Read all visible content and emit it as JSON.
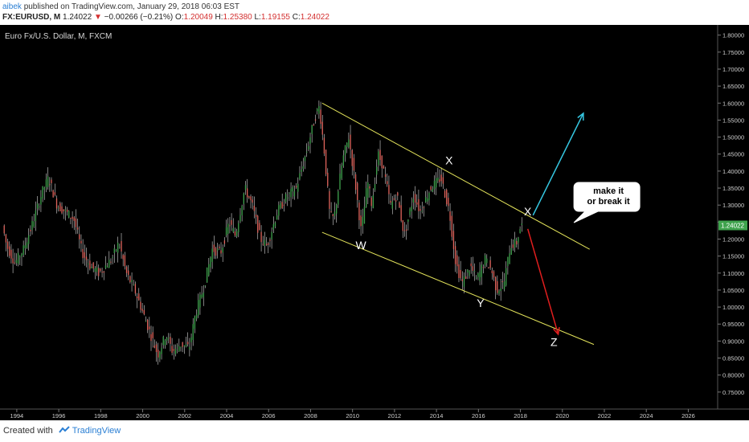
{
  "header": {
    "author": "aibek",
    "published_text": "published on TradingView.com, January 29, 2018 06:03 EST",
    "symbol": "FX:EURUSD, M",
    "last": "1.24022",
    "change_arrow": "▼",
    "change": "−0.00266 (−0.21%)",
    "o_label": "O:",
    "o_value": "1.20049",
    "h_label": "H:",
    "h_value": "1.25380",
    "l_label": "L:",
    "l_value": "1.19155",
    "c_label": "C:",
    "c_value": "1.24022"
  },
  "footer": {
    "created_with": "Created with",
    "brand": "TradingView"
  },
  "colors": {
    "background": "#000000",
    "up": "#3fa34d",
    "down": "#e0645c",
    "channel": "#e3e35a",
    "arrow_up": "#35c6e0",
    "arrow_down": "#e01e1e",
    "price_badge": "#3fa34d"
  },
  "chart_data": {
    "type": "candlestick",
    "title": "Euro Fx/U.S. Dollar, M, FXCM",
    "xlim": [
      1993.2,
      2027.4
    ],
    "ylim": [
      0.7,
      1.83
    ],
    "x_ticks": [
      "1994",
      "1996",
      "1998",
      "2000",
      "2002",
      "2004",
      "2006",
      "2008",
      "2010",
      "2012",
      "2014",
      "2016",
      "2018",
      "2020",
      "2022",
      "2024",
      "2026"
    ],
    "y_ticks": [
      "1.80000",
      "1.75000",
      "1.70000",
      "1.65000",
      "1.60000",
      "1.55000",
      "1.50000",
      "1.45000",
      "1.40000",
      "1.35000",
      "1.30000",
      "1.25000",
      "1.20000",
      "1.15000",
      "1.10000",
      "1.05000",
      "1.00000",
      "0.95000",
      "0.90000",
      "0.85000",
      "0.80000",
      "0.75000"
    ],
    "last_price": "1.24022",
    "price_path": [
      [
        1993.4,
        1.24
      ],
      [
        1993.6,
        1.18
      ],
      [
        1994.0,
        1.13
      ],
      [
        1994.4,
        1.17
      ],
      [
        1994.8,
        1.24
      ],
      [
        1995.3,
        1.34
      ],
      [
        1995.6,
        1.38
      ],
      [
        1996.0,
        1.3
      ],
      [
        1996.4,
        1.28
      ],
      [
        1996.8,
        1.26
      ],
      [
        1997.2,
        1.16
      ],
      [
        1997.6,
        1.12
      ],
      [
        1998.0,
        1.1
      ],
      [
        1998.6,
        1.14
      ],
      [
        1998.95,
        1.19
      ],
      [
        1999.3,
        1.1
      ],
      [
        1999.7,
        1.05
      ],
      [
        2000.0,
        1.0
      ],
      [
        2000.4,
        0.93
      ],
      [
        2000.8,
        0.86
      ],
      [
        2001.2,
        0.92
      ],
      [
        2001.5,
        0.87
      ],
      [
        2001.9,
        0.89
      ],
      [
        2002.3,
        0.88
      ],
      [
        2002.6,
        0.98
      ],
      [
        2003.0,
        1.06
      ],
      [
        2003.4,
        1.17
      ],
      [
        2003.8,
        1.16
      ],
      [
        2004.2,
        1.25
      ],
      [
        2004.5,
        1.21
      ],
      [
        2004.95,
        1.35
      ],
      [
        2005.3,
        1.3
      ],
      [
        2005.7,
        1.2
      ],
      [
        2006.0,
        1.18
      ],
      [
        2006.5,
        1.28
      ],
      [
        2006.9,
        1.32
      ],
      [
        2007.4,
        1.35
      ],
      [
        2007.9,
        1.46
      ],
      [
        2008.3,
        1.56
      ],
      [
        2008.5,
        1.59
      ],
      [
        2008.75,
        1.45
      ],
      [
        2009.0,
        1.27
      ],
      [
        2009.2,
        1.26
      ],
      [
        2009.6,
        1.43
      ],
      [
        2009.9,
        1.5
      ],
      [
        2010.2,
        1.37
      ],
      [
        2010.5,
        1.22
      ],
      [
        2010.8,
        1.37
      ],
      [
        2011.0,
        1.3
      ],
      [
        2011.3,
        1.45
      ],
      [
        2011.5,
        1.42
      ],
      [
        2011.9,
        1.3
      ],
      [
        2012.2,
        1.33
      ],
      [
        2012.55,
        1.21
      ],
      [
        2013.0,
        1.33
      ],
      [
        2013.3,
        1.28
      ],
      [
        2013.8,
        1.35
      ],
      [
        2014.3,
        1.38
      ],
      [
        2014.7,
        1.28
      ],
      [
        2015.0,
        1.13
      ],
      [
        2015.3,
        1.07
      ],
      [
        2015.7,
        1.12
      ],
      [
        2016.0,
        1.08
      ],
      [
        2016.4,
        1.14
      ],
      [
        2016.7,
        1.11
      ],
      [
        2016.95,
        1.05
      ],
      [
        2017.3,
        1.07
      ],
      [
        2017.6,
        1.18
      ],
      [
        2017.9,
        1.19
      ],
      [
        2018.1,
        1.24
      ]
    ],
    "channel": {
      "upper": {
        "start": [
          2008.55,
          1.6
        ],
        "end": [
          2021.3,
          1.17
        ]
      },
      "lower": {
        "start": [
          2008.55,
          1.22
        ],
        "end": [
          2021.5,
          0.89
        ]
      }
    },
    "arrows": [
      {
        "name": "up",
        "from": [
          2018.6,
          1.27
        ],
        "to": [
          2021.0,
          1.57
        ]
      },
      {
        "name": "down",
        "from": [
          2018.35,
          1.23
        ],
        "to": [
          2019.8,
          0.92
        ]
      }
    ],
    "annotations": [
      {
        "text": "X",
        "x": 2014.6,
        "y": 1.42
      },
      {
        "text": "W",
        "x": 2010.4,
        "y": 1.17
      },
      {
        "text": "Y",
        "x": 2016.1,
        "y": 1.0
      },
      {
        "text": "X",
        "x": 2018.35,
        "y": 1.27
      },
      {
        "text": "Z",
        "x": 2019.6,
        "y": 0.885
      }
    ],
    "callout": {
      "line1": "make it",
      "line2": "or break it",
      "anchor": [
        2019.4,
        1.275
      ]
    }
  }
}
